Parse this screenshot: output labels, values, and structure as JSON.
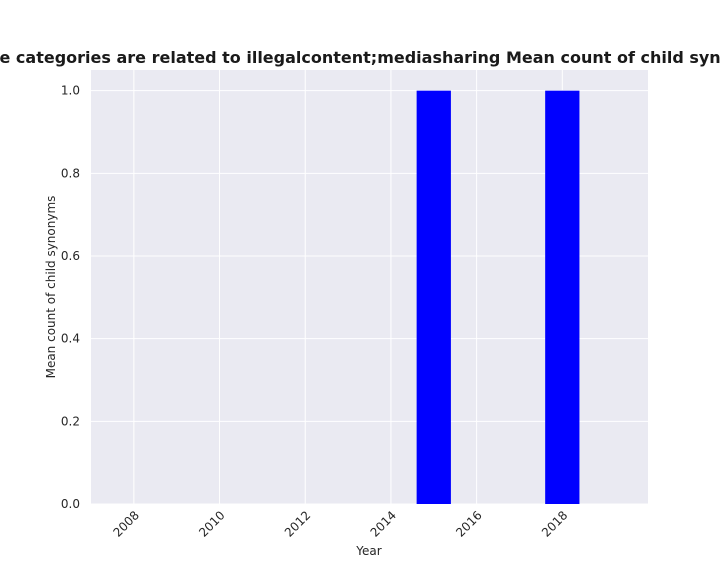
{
  "chart_data": {
    "type": "bar",
    "title": "Percentage of apps whose categories are related to illegalcontent;mediasharing Mean count of child synonyms in privacy policies",
    "xlabel": "Year",
    "ylabel": "Mean count of child synonyms",
    "x": [
      2015,
      2018
    ],
    "values": [
      1.0,
      1.0
    ],
    "xlim": [
      2007,
      2020
    ],
    "ylim": [
      0,
      1.05
    ],
    "xticks": [
      2008,
      2010,
      2012,
      2014,
      2016,
      2018
    ],
    "yticks": [
      0.0,
      0.2,
      0.4,
      0.6,
      0.8,
      1.0
    ],
    "bar_color": "#0000ff",
    "background_color": "#eaeaf2",
    "grid_color": "#ffffff",
    "grid": true,
    "legend": "none"
  }
}
